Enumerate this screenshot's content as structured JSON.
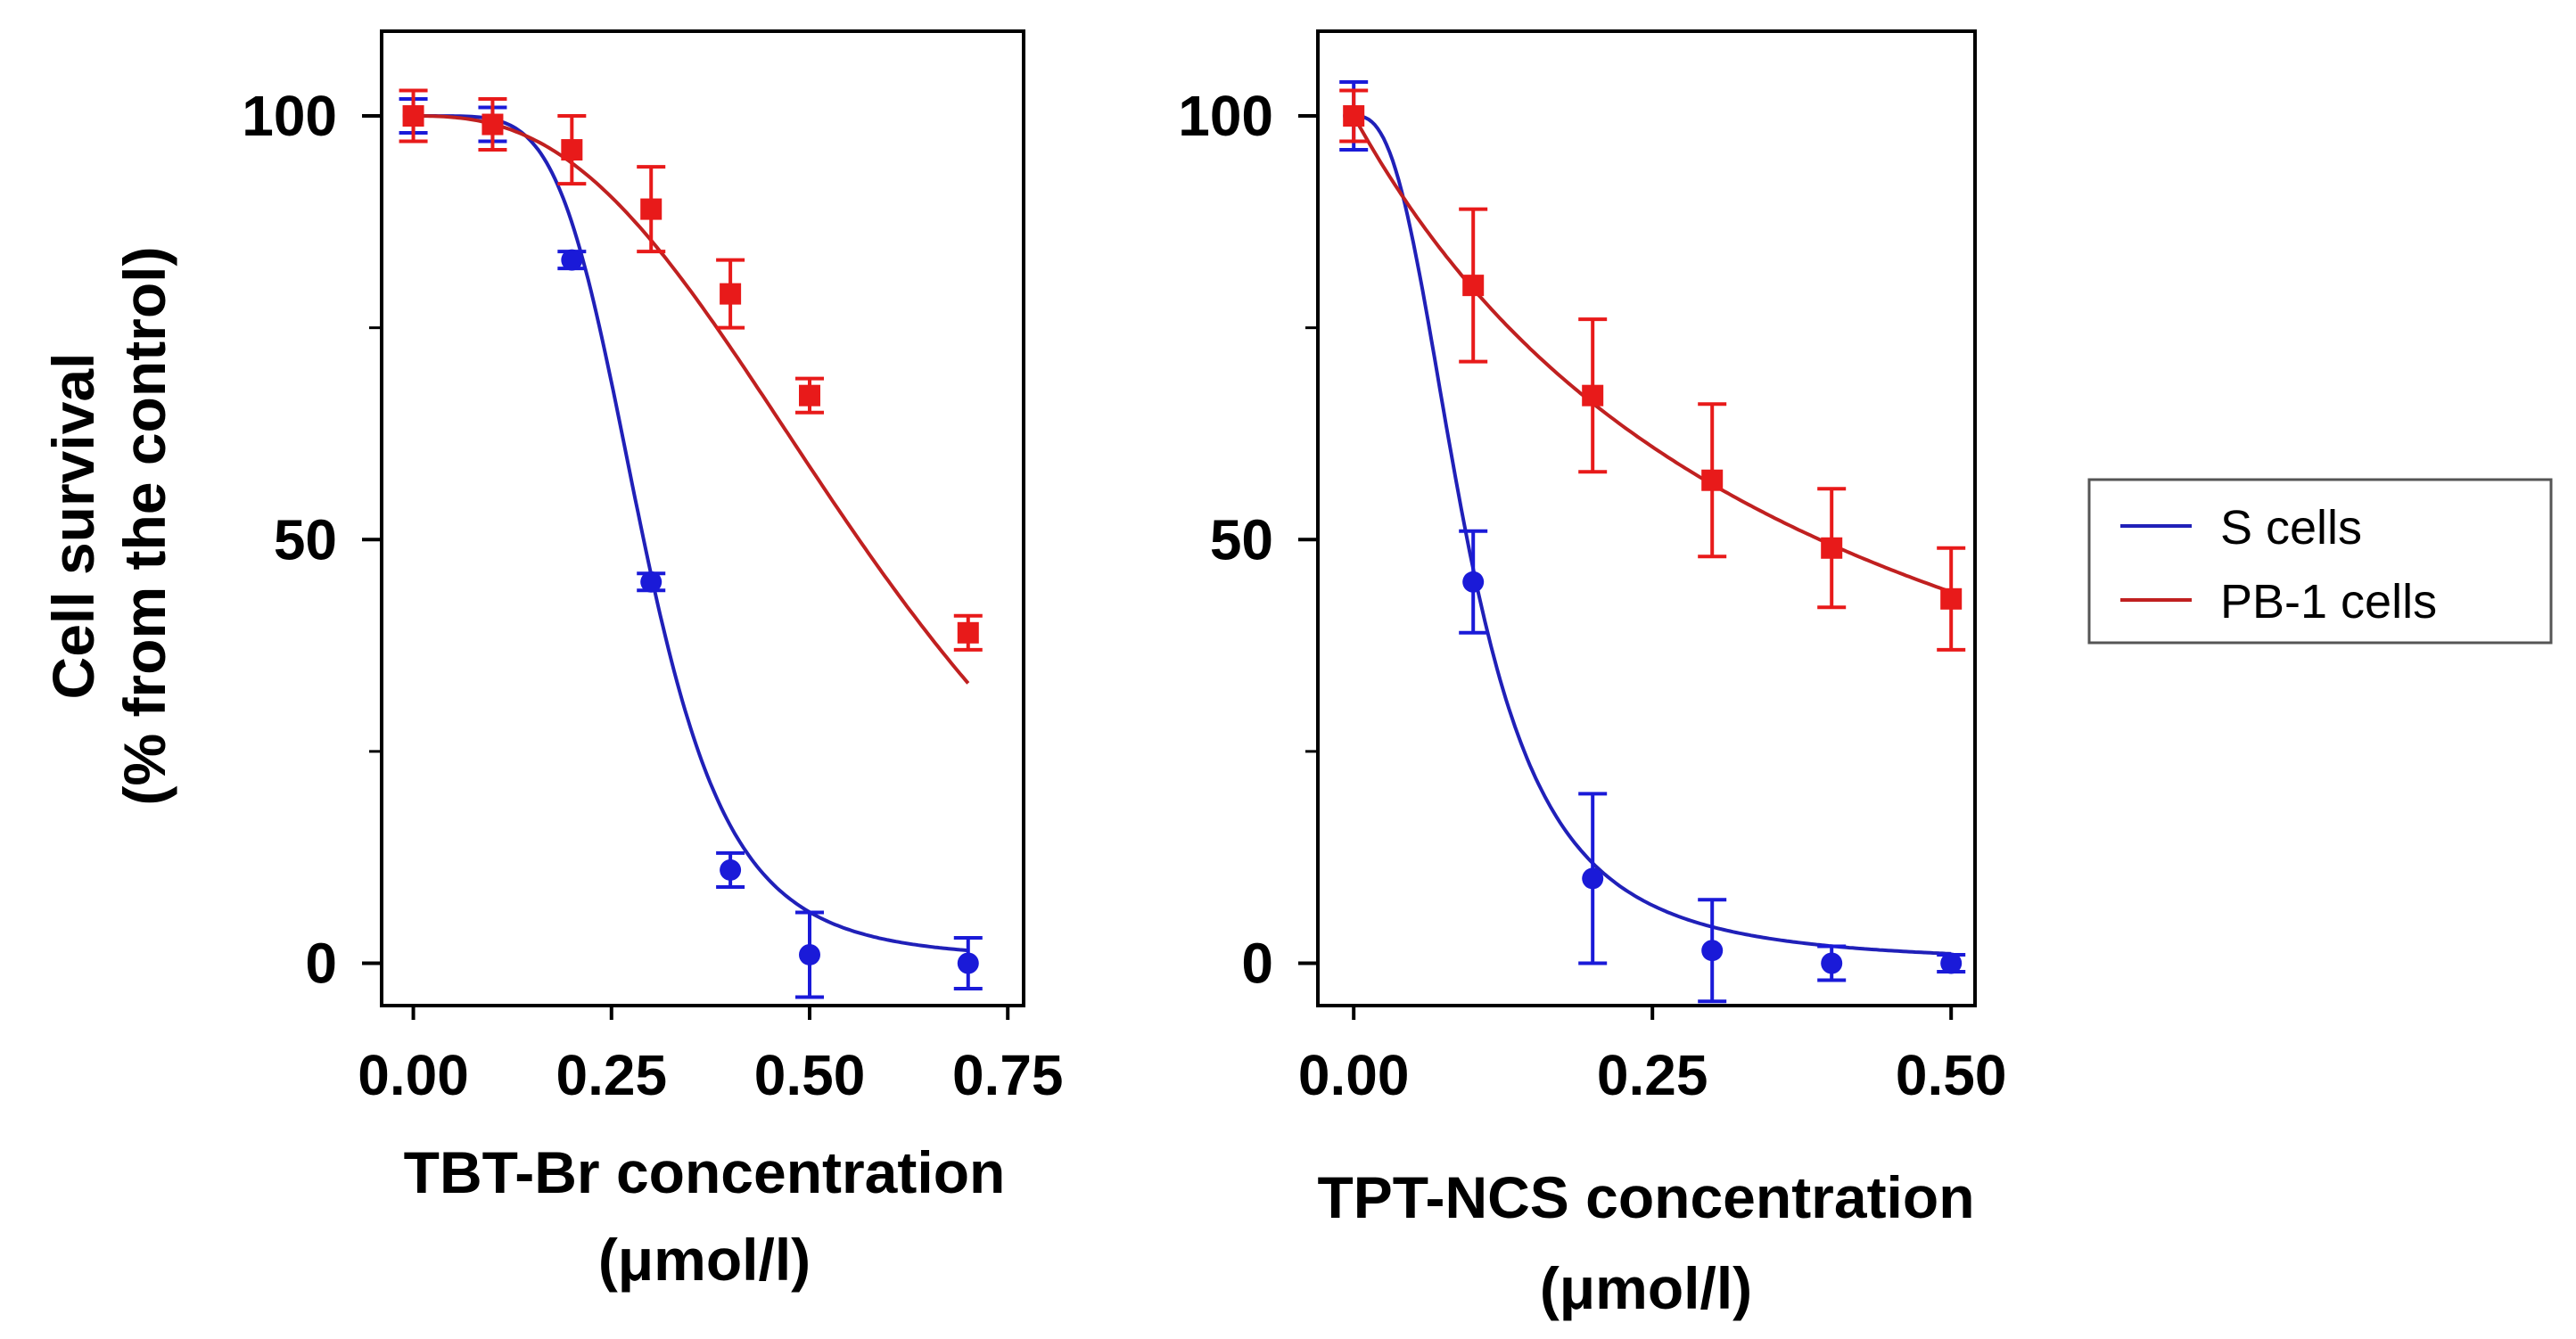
{
  "colors": {
    "s_cells": "#1a1ad8",
    "pb1_cells": "#e81a1a",
    "curve_s": "#2020b8",
    "curve_pb1": "#c02020",
    "axis": "#000000"
  },
  "y_axis": {
    "title_line1": "Cell survival",
    "title_line2": "(% from the control)"
  },
  "legend": {
    "entries": [
      {
        "label": "S cells",
        "series": "s"
      },
      {
        "label": "PB-1 cells",
        "series": "pb1"
      }
    ]
  },
  "chart_data": [
    {
      "type": "line",
      "xlabel_line1": "TBT-Br concentration",
      "xlabel_line2": "(μmol/l)",
      "xlim": [
        -0.04,
        0.77
      ],
      "ylim": [
        -5,
        110
      ],
      "xticks": [
        0,
        0.25,
        0.5,
        0.75
      ],
      "xtick_labels": [
        "0.00",
        "0.25",
        "0.50",
        "0.75"
      ],
      "yticks": [
        0,
        50,
        100
      ],
      "ytick_labels": [
        "0",
        "50",
        "100"
      ],
      "y_minor": [
        0,
        25,
        50,
        75,
        100
      ],
      "series": [
        {
          "name": "S cells",
          "key": "s",
          "marker": "circle",
          "x": [
            0,
            0.1,
            0.2,
            0.3,
            0.4,
            0.5,
            0.7
          ],
          "y": [
            100,
            99,
            83,
            45,
            11,
            1,
            0
          ],
          "err": [
            2,
            2,
            1,
            1,
            2,
            5,
            3
          ],
          "curve": {
            "type": "sigmoid",
            "top": 100,
            "bottom": 0.5,
            "ec50": 0.29,
            "hill": 5.2
          }
        },
        {
          "name": "PB-1 cells",
          "key": "pb1",
          "marker": "square",
          "x": [
            0,
            0.1,
            0.2,
            0.3,
            0.4,
            0.5,
            0.7
          ],
          "y": [
            100,
            99,
            96,
            89,
            79,
            67,
            39
          ],
          "err": [
            3,
            3,
            4,
            5,
            4,
            2,
            2
          ],
          "curve": {
            "type": "sigmoid",
            "top": 100,
            "bottom": -20,
            "ec50": 0.64,
            "hill": 2.6
          }
        }
      ]
    },
    {
      "type": "line",
      "xlabel_line1": "TPT-NCS concentration",
      "xlabel_line2": "(μmol/l)",
      "xlim": [
        -0.03,
        0.52
      ],
      "ylim": [
        -5,
        110
      ],
      "xticks": [
        0,
        0.25,
        0.5
      ],
      "xtick_labels": [
        "0.00",
        "0.25",
        "0.50"
      ],
      "yticks": [
        0,
        50,
        100
      ],
      "ytick_labels": [
        "0",
        "50",
        "100"
      ],
      "y_minor": [
        0,
        25,
        50,
        75,
        100
      ],
      "series": [
        {
          "name": "S cells",
          "key": "s",
          "marker": "circle",
          "x": [
            0,
            0.1,
            0.2,
            0.3,
            0.4,
            0.5
          ],
          "y": [
            100,
            45,
            10,
            1.5,
            0,
            0
          ],
          "err": [
            4,
            6,
            10,
            6,
            2,
            1
          ],
          "curve": {
            "type": "sigmoid",
            "top": 100,
            "bottom": 0,
            "ec50": 0.095,
            "hill": 2.7
          }
        },
        {
          "name": "PB-1 cells",
          "key": "pb1",
          "marker": "square",
          "x": [
            0,
            0.1,
            0.2,
            0.3,
            0.4,
            0.5
          ],
          "y": [
            100,
            80,
            67,
            57,
            49,
            43
          ],
          "err": [
            3,
            9,
            9,
            9,
            7,
            6
          ],
          "curve": {
            "type": "sigmoid",
            "top": 100,
            "bottom": 0,
            "ec50": 0.39,
            "hill": 1.0
          }
        }
      ]
    }
  ]
}
